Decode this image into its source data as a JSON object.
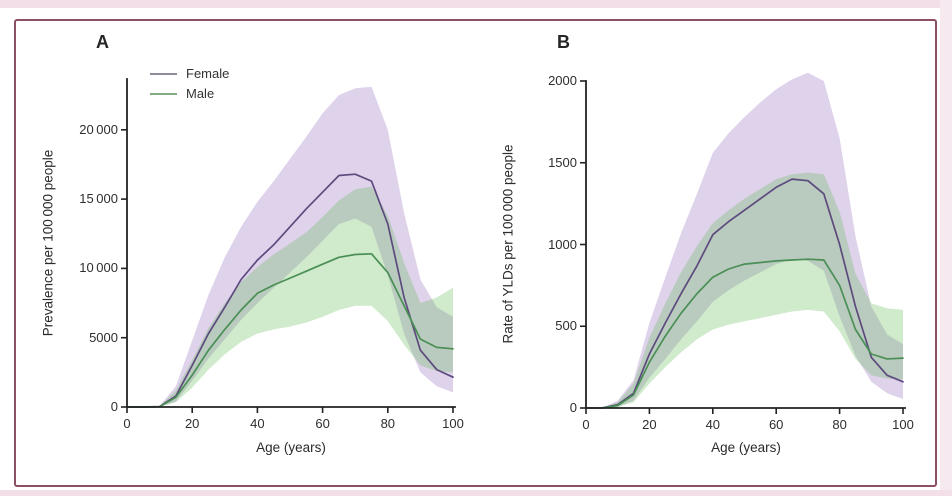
{
  "figure": {
    "frame_border_color": "#8c4f63",
    "canvas_background": "#ffffff",
    "page_edge_color": "#f3dfe8",
    "page_edge_color_right": "#f6e9ef",
    "axis_color": "#222222",
    "text_color": "#2b2b2b"
  },
  "legend": {
    "female_label": "Female",
    "male_label": "Male"
  },
  "chart_data": [
    {
      "type": "area",
      "panel_label": "A",
      "xlabel": "Age (years)",
      "ylabel": "Prevalence per 100 000 people",
      "xlim": [
        0,
        100
      ],
      "ylim": [
        0,
        23700
      ],
      "xticks": [
        0,
        20,
        40,
        60,
        80,
        100
      ],
      "xtick_labels": [
        "0",
        "20",
        "40",
        "60",
        "80",
        "100"
      ],
      "yticks": [
        0,
        5000,
        10000,
        15000,
        20000
      ],
      "ytick_labels": [
        "0",
        "5000",
        "10 000",
        "15 000",
        "20 000"
      ],
      "legend_visible": true,
      "legend_position": "top-left",
      "grid": false,
      "x": [
        0,
        5,
        10,
        15,
        20,
        25,
        30,
        35,
        40,
        45,
        50,
        55,
        60,
        65,
        70,
        75,
        80,
        85,
        90,
        95,
        100
      ],
      "series": [
        {
          "name": "Female",
          "color": "#5d4a7e",
          "legend_color": "#908a9b",
          "band_color": "rgba(150,105,190,0.30)",
          "values": [
            0,
            0,
            30,
            800,
            3000,
            5300,
            7200,
            9200,
            10600,
            11700,
            13000,
            14300,
            15500,
            16700,
            16800,
            16300,
            13200,
            7900,
            4100,
            2700,
            2150
          ],
          "upper": [
            0,
            0,
            80,
            1500,
            4800,
            8100,
            10800,
            13000,
            14800,
            16300,
            17900,
            19500,
            21200,
            22500,
            23000,
            23100,
            20000,
            14000,
            9200,
            7200,
            6500
          ],
          "lower": [
            0,
            0,
            10,
            400,
            1900,
            3500,
            4900,
            6300,
            7500,
            8600,
            9700,
            10800,
            12000,
            13200,
            13600,
            13000,
            9500,
            5300,
            2500,
            1500,
            1050
          ]
        },
        {
          "name": "Male",
          "color": "#4a8f55",
          "legend_color": "#82ab7f",
          "band_color": "rgba(100,185,85,0.30)",
          "values": [
            0,
            0,
            25,
            700,
            2300,
            4100,
            5600,
            7000,
            8200,
            8800,
            9300,
            9800,
            10300,
            10800,
            11000,
            11050,
            9700,
            7300,
            4900,
            4300,
            4200
          ],
          "upper": [
            0,
            0,
            60,
            1200,
            3400,
            5700,
            7500,
            9000,
            10100,
            11000,
            11800,
            12600,
            13700,
            14900,
            15700,
            15900,
            13800,
            10400,
            7500,
            7900,
            8600
          ],
          "lower": [
            0,
            0,
            10,
            350,
            1400,
            2700,
            3800,
            4700,
            5300,
            5600,
            5800,
            6100,
            6500,
            7000,
            7300,
            7300,
            6200,
            4500,
            3000,
            2600,
            2500
          ]
        }
      ]
    },
    {
      "type": "area",
      "panel_label": "B",
      "xlabel": "Age (years)",
      "ylabel": "Rate of YLDs per 100 000 people",
      "xlim": [
        0,
        100
      ],
      "ylim": [
        0,
        2000
      ],
      "xticks": [
        0,
        20,
        40,
        60,
        80,
        100
      ],
      "xtick_labels": [
        "0",
        "20",
        "40",
        "60",
        "80",
        "100"
      ],
      "yticks": [
        0,
        500,
        1000,
        1500,
        2000
      ],
      "ytick_labels": [
        "0",
        "500",
        "1000",
        "1500",
        "2000"
      ],
      "legend_visible": false,
      "grid": false,
      "x": [
        0,
        5,
        10,
        15,
        20,
        25,
        30,
        35,
        40,
        45,
        50,
        55,
        60,
        65,
        70,
        75,
        80,
        85,
        90,
        95,
        100
      ],
      "series": [
        {
          "name": "Female",
          "color": "#5d4a7e",
          "legend_color": "#908a9b",
          "band_color": "rgba(150,105,190,0.30)",
          "values": [
            0,
            0,
            20,
            90,
            330,
            520,
            700,
            870,
            1060,
            1140,
            1210,
            1280,
            1350,
            1400,
            1390,
            1310,
            1000,
            620,
            310,
            200,
            160
          ],
          "upper": [
            0,
            0,
            45,
            170,
            520,
            800,
            1070,
            1310,
            1560,
            1680,
            1780,
            1870,
            1950,
            2010,
            2050,
            2000,
            1650,
            1050,
            620,
            450,
            390
          ],
          "lower": [
            0,
            0,
            8,
            45,
            185,
            300,
            420,
            530,
            650,
            720,
            780,
            830,
            880,
            910,
            900,
            840,
            560,
            320,
            160,
            90,
            55
          ]
        },
        {
          "name": "Male",
          "color": "#4a8f55",
          "legend_color": "#82ab7f",
          "band_color": "rgba(100,185,85,0.30)",
          "values": [
            0,
            0,
            15,
            80,
            280,
            440,
            580,
            700,
            800,
            850,
            880,
            890,
            900,
            905,
            910,
            905,
            750,
            480,
            330,
            300,
            305
          ],
          "upper": [
            0,
            0,
            35,
            150,
            430,
            640,
            830,
            990,
            1130,
            1210,
            1280,
            1340,
            1400,
            1430,
            1440,
            1430,
            1200,
            820,
            640,
            610,
            600
          ],
          "lower": [
            0,
            0,
            5,
            35,
            150,
            250,
            340,
            420,
            480,
            510,
            530,
            550,
            570,
            590,
            600,
            590,
            470,
            300,
            200,
            180,
            175
          ]
        }
      ]
    }
  ]
}
